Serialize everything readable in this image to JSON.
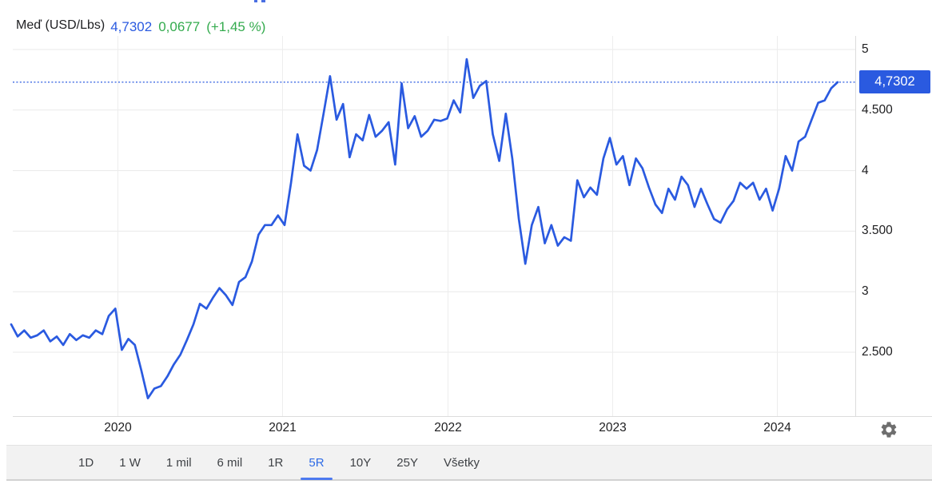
{
  "header": {
    "symbol": "Meď (USD/Lbs)",
    "price": "4,7302",
    "change": "0,0677",
    "change_pct": "(+1,45 %)"
  },
  "price_badge": {
    "text": "4,7302"
  },
  "axis": {
    "y_labels": [
      "5",
      "4.500",
      "4",
      "3.500",
      "3",
      "2.500"
    ],
    "x_labels": [
      "2020",
      "2021",
      "2022",
      "2023",
      "2024"
    ]
  },
  "toolbar": {
    "items": [
      "1D",
      "1 W",
      "1 mil",
      "6 mil",
      "1R",
      "5R",
      "10Y",
      "25Y",
      "Všetky"
    ],
    "active": "5R"
  },
  "icons": {
    "gear": "settings-gear-icon"
  },
  "colors": {
    "line": "#2a5ae0",
    "badge_bg": "#2a5ae0",
    "price_text": "#2a5ae0",
    "change_text": "#34ab4e",
    "grid": "#e9e9e9",
    "grid_vertical": "#ededed",
    "axis_line": "#dcdcdc",
    "label_text": "#1d1d1f",
    "toolbar_bg": "#f2f2f2",
    "active_tab": "#2e6be6",
    "gear": "#6e6e6e"
  },
  "chart_data": {
    "type": "line",
    "title": "Meď (USD/Lbs)",
    "ylabel": "USD/Lbs",
    "current_price": 4.7302,
    "change": 0.0677,
    "change_pct_value": 1.45,
    "selected_range": "5R",
    "x_start": "2019-05",
    "x_end": "2024-05",
    "interval": "biweekly",
    "x_axis_years": [
      "2020",
      "2021",
      "2022",
      "2023",
      "2024"
    ],
    "y_ticks": [
      5,
      4.5,
      4,
      3.5,
      3,
      2.5
    ],
    "ylim": [
      1.97,
      5.11
    ],
    "grid": true,
    "legend": false,
    "series": [
      {
        "name": "Meď (USD/Lbs)",
        "values": [
          2.73,
          2.63,
          2.68,
          2.62,
          2.64,
          2.68,
          2.59,
          2.63,
          2.56,
          2.65,
          2.6,
          2.64,
          2.62,
          2.68,
          2.65,
          2.8,
          2.86,
          2.52,
          2.61,
          2.56,
          2.35,
          2.12,
          2.2,
          2.22,
          2.3,
          2.4,
          2.48,
          2.6,
          2.73,
          2.9,
          2.86,
          2.95,
          3.03,
          2.97,
          2.89,
          3.08,
          3.12,
          3.25,
          3.47,
          3.55,
          3.55,
          3.63,
          3.55,
          3.9,
          4.3,
          4.04,
          4.0,
          4.17,
          4.47,
          4.78,
          4.42,
          4.55,
          4.11,
          4.3,
          4.25,
          4.46,
          4.28,
          4.33,
          4.4,
          4.05,
          4.72,
          4.35,
          4.45,
          4.28,
          4.33,
          4.42,
          4.41,
          4.43,
          4.58,
          4.48,
          4.92,
          4.6,
          4.7,
          4.74,
          4.3,
          4.08,
          4.47,
          4.1,
          3.6,
          3.23,
          3.55,
          3.7,
          3.4,
          3.55,
          3.38,
          3.45,
          3.42,
          3.92,
          3.78,
          3.86,
          3.8,
          4.1,
          4.27,
          4.05,
          4.12,
          3.88,
          4.1,
          4.02,
          3.86,
          3.72,
          3.65,
          3.85,
          3.76,
          3.95,
          3.88,
          3.7,
          3.85,
          3.72,
          3.6,
          3.57,
          3.68,
          3.75,
          3.9,
          3.85,
          3.9,
          3.76,
          3.85,
          3.67,
          3.85,
          4.12,
          4.0,
          4.24,
          4.28,
          4.42,
          4.56,
          4.58,
          4.68,
          4.73
        ]
      }
    ]
  }
}
